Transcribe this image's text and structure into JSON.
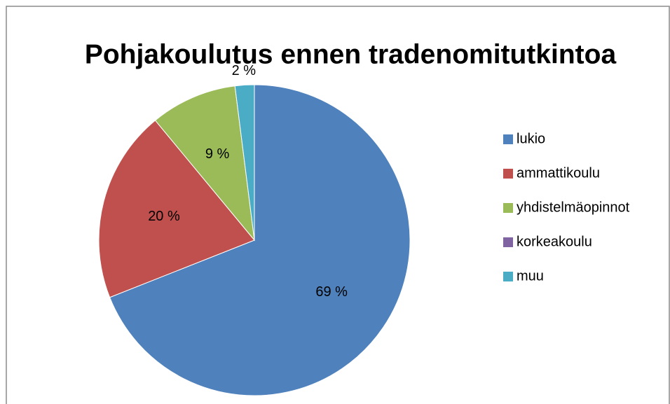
{
  "chart_data": {
    "type": "pie",
    "title": "Pohjakoulutus ennen tradenomitutkintoa",
    "categories": [
      "lukio",
      "ammattikoulu",
      "yhdistelmäopinnot",
      "korkeakoulu",
      "muu"
    ],
    "values": [
      69,
      20,
      9,
      0,
      2
    ],
    "value_labels": [
      "69 %",
      "20 %",
      "9 %",
      null,
      "2 %"
    ],
    "colors": [
      "#4f81bd",
      "#c0504d",
      "#9bbb59",
      "#8064a2",
      "#4bacc6"
    ],
    "legend": "right"
  }
}
